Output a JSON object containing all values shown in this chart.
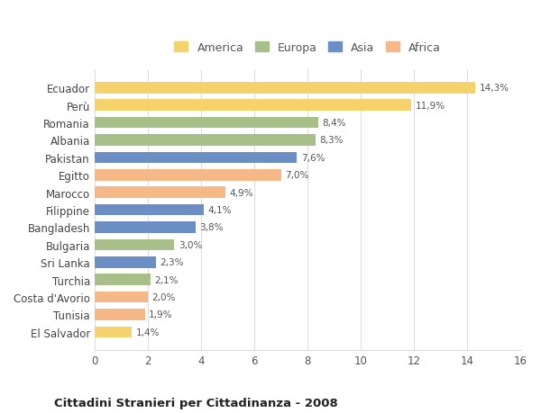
{
  "categories": [
    "El Salvador",
    "Tunisia",
    "Costa d'Avorio",
    "Turchia",
    "Sri Lanka",
    "Bulgaria",
    "Bangladesh",
    "Filippine",
    "Marocco",
    "Egitto",
    "Pakistan",
    "Albania",
    "Romania",
    "Perù",
    "Ecuador"
  ],
  "values": [
    1.4,
    1.9,
    2.0,
    2.1,
    2.3,
    3.0,
    3.8,
    4.1,
    4.9,
    7.0,
    7.6,
    8.3,
    8.4,
    11.9,
    14.3
  ],
  "colors": [
    "#f5d26b",
    "#f5b886",
    "#f5b886",
    "#a8bf8a",
    "#6b8fc4",
    "#a8bf8a",
    "#6b8fc4",
    "#6b8fc4",
    "#f5b886",
    "#f5b886",
    "#6b8fc4",
    "#a8bf8a",
    "#a8bf8a",
    "#f5d26b",
    "#f5d26b"
  ],
  "labels": [
    "1,4%",
    "1,9%",
    "2,0%",
    "2,1%",
    "2,3%",
    "3,0%",
    "3,8%",
    "4,1%",
    "4,9%",
    "7,0%",
    "7,6%",
    "8,3%",
    "8,4%",
    "11,9%",
    "14,3%"
  ],
  "xlim": [
    0,
    16
  ],
  "xticks": [
    0,
    2,
    4,
    6,
    8,
    10,
    12,
    14,
    16
  ],
  "title": "Cittadini Stranieri per Cittadinanza - 2008",
  "legend": [
    {
      "label": "America",
      "color": "#f5d26b"
    },
    {
      "label": "Europa",
      "color": "#a8bf8a"
    },
    {
      "label": "Asia",
      "color": "#6b8fc4"
    },
    {
      "label": "Africa",
      "color": "#f5b886"
    }
  ],
  "bg_color": "#ffffff",
  "grid_color": "#dddddd",
  "bar_height": 0.65
}
